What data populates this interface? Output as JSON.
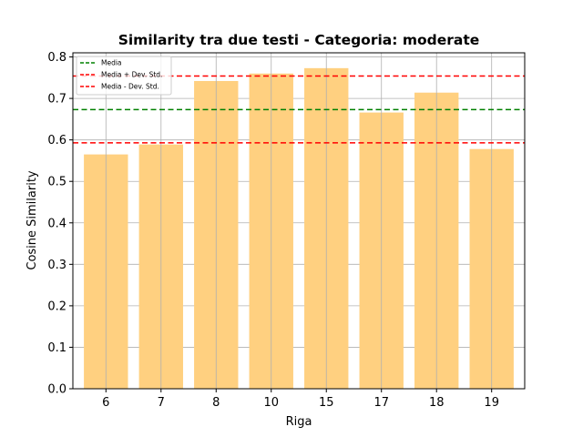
{
  "chart_data": {
    "type": "bar",
    "title": "Similarity tra due testi - Categoria: moderate",
    "xlabel": "Riga",
    "ylabel": "Cosine Similarity",
    "categories": [
      "6",
      "7",
      "8",
      "10",
      "15",
      "17",
      "18",
      "19"
    ],
    "values": [
      0.565,
      0.589,
      0.742,
      0.76,
      0.773,
      0.666,
      0.714,
      0.578
    ],
    "ylim": [
      0,
      0.81
    ],
    "yticks": [
      "0.0",
      "0.1",
      "0.2",
      "0.3",
      "0.4",
      "0.5",
      "0.6",
      "0.7",
      "0.8"
    ],
    "grid": true,
    "bar_color": "#ffd080",
    "reference_lines": [
      {
        "label": "Media",
        "value": 0.673,
        "color": "#008000"
      },
      {
        "label": "Media + Dev. Std.",
        "value": 0.754,
        "color": "#ff0000"
      },
      {
        "label": "Media - Dev. Std.",
        "value": 0.593,
        "color": "#ff0000"
      }
    ],
    "legend_position": "upper-left"
  }
}
